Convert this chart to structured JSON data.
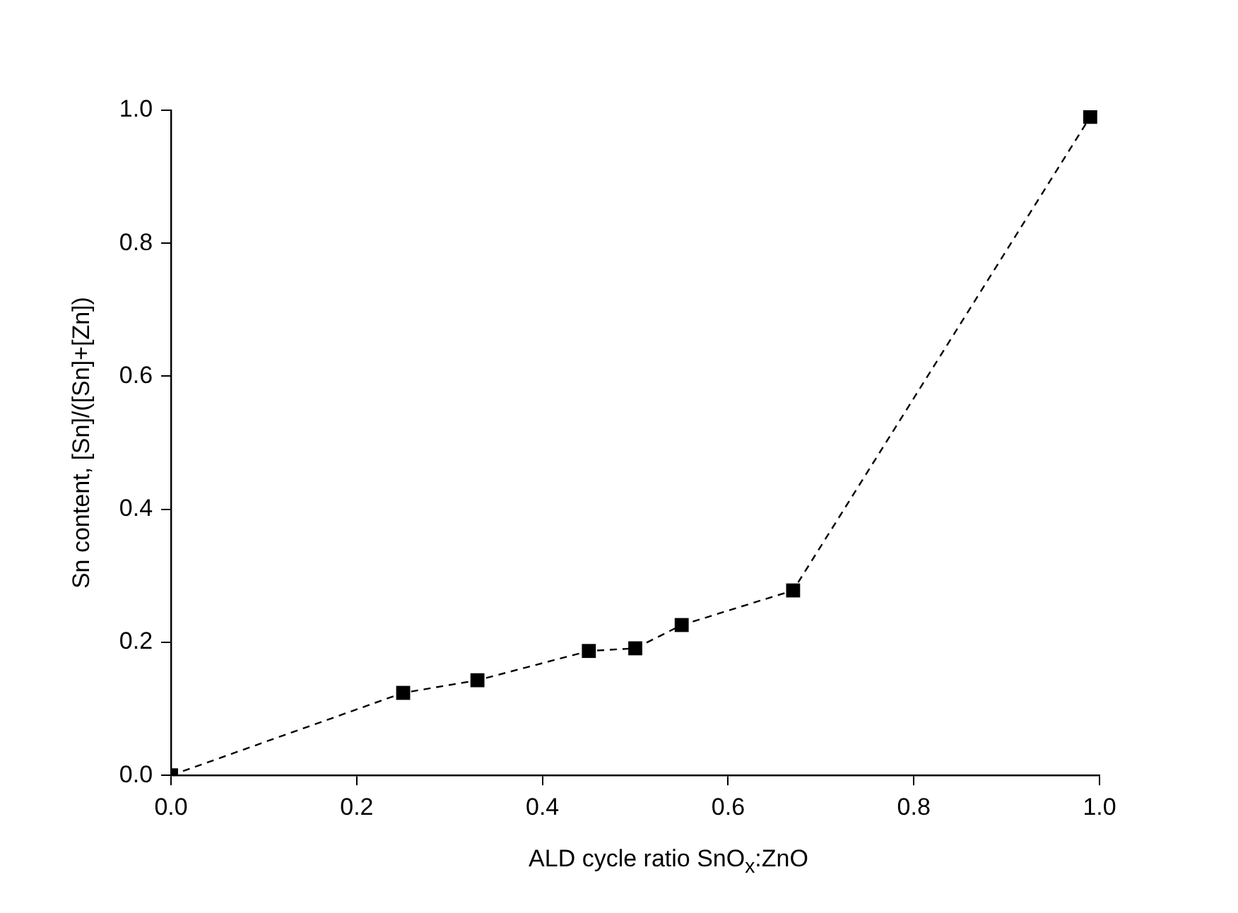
{
  "chart_data": {
    "type": "line",
    "xlabel": "ALD cycle ratio SnO$_{x}$:ZnO",
    "ylabel": "Sn content, [Sn]/([Sn]+[Zn])",
    "x": [
      0,
      0.25,
      0.33,
      0.45,
      0.5,
      0.55,
      0.67,
      0.99
    ],
    "series": [
      {
        "color": "#000000",
        "values": [
          0,
          0.124,
          0.143,
          0.187,
          0.191,
          0.226,
          0.278,
          0.99
        ]
      }
    ],
    "xlim": [
      0,
      1
    ],
    "ylim": [
      0,
      1
    ],
    "xticks": [
      {
        "value": 0,
        "label": "0.0"
      },
      {
        "value": 0.2,
        "label": "0.2"
      },
      {
        "value": 0.4,
        "label": "0.4"
      },
      {
        "value": 0.6,
        "label": "0.6"
      },
      {
        "value": 0.8,
        "label": "0.8"
      },
      {
        "value": 1,
        "label": "1.0"
      }
    ],
    "yticks": [
      {
        "value": 0,
        "label": "0.0"
      },
      {
        "value": 0.2,
        "label": "0.2"
      },
      {
        "value": 0.4,
        "label": "0.4"
      },
      {
        "value": 0.6,
        "label": "0.6"
      },
      {
        "value": 0.8,
        "label": "0.8"
      },
      {
        "value": 1,
        "label": "1.0"
      }
    ],
    "grid": false,
    "legend": false,
    "marker": "square",
    "line_style": "dashed"
  }
}
